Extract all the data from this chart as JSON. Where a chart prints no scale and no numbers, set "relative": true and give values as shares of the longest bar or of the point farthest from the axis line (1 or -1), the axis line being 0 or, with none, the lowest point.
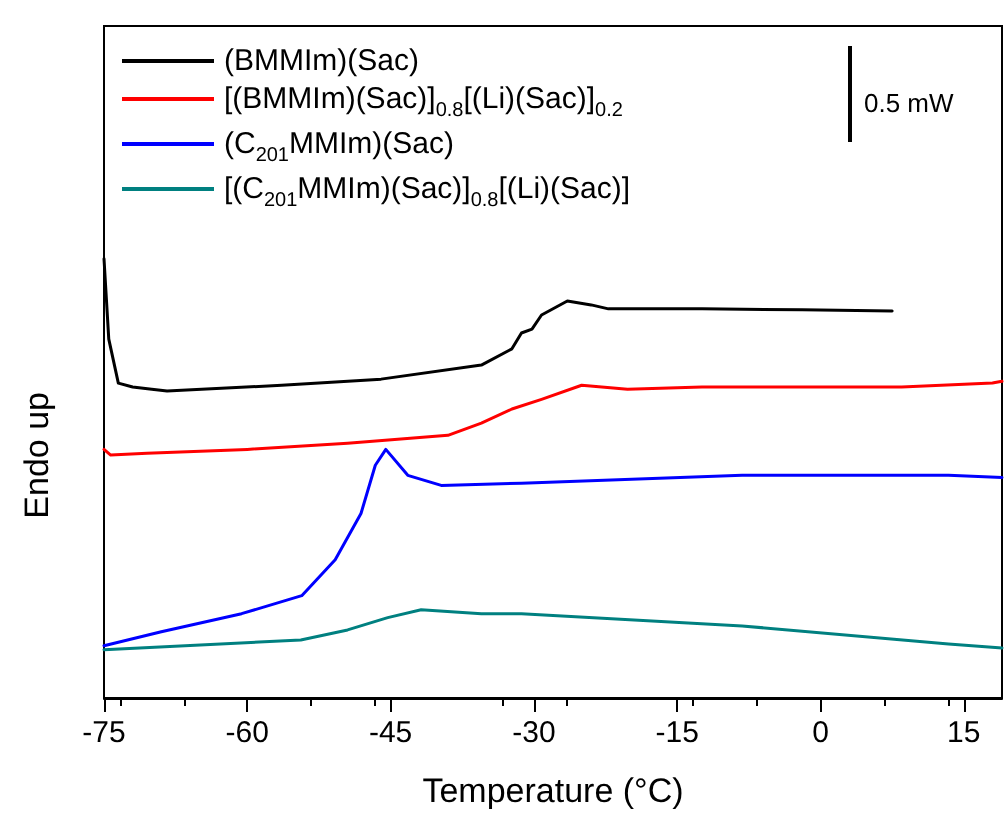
{
  "chart_data": {
    "type": "line",
    "relative": true,
    "xlabel": "Temperature (°C)",
    "ylabel": "Endo up",
    "xlim": [
      -75,
      19
    ],
    "xticks": [
      -75,
      -60,
      -45,
      -30,
      -15,
      0,
      15
    ],
    "legend": "top left",
    "marker": "none",
    "line_style": "solid",
    "grid": false,
    "annotations": [
      "0.5 mW"
    ],
    "series": [
      {
        "name": "(BMMIm)(Sac)",
        "color": "#000000",
        "x": [
          -75,
          -74.5,
          -73.5,
          -72,
          -70,
          -68.4,
          -56.4,
          -46,
          -35.5,
          -32.3,
          -31.3,
          -30.2,
          -29.2,
          -26.5,
          -24,
          -22.2,
          -12.4,
          -1.9,
          7.5
        ],
        "values": [
          1.0,
          0.817,
          0.717,
          0.708,
          0.703,
          0.699,
          0.712,
          0.726,
          0.758,
          0.795,
          0.831,
          0.84,
          0.872,
          0.904,
          0.895,
          0.886,
          0.886,
          0.884,
          0.881
        ]
      },
      {
        "name": "[(BMMIm)(Sac)]$_{0.8}$[(Li)(Sac)]$_{0.2}$",
        "color": "#ff0000",
        "x": [
          -75,
          -74.3,
          -70.5,
          -60,
          -49.5,
          -39,
          -35.5,
          -32.3,
          -29.2,
          -25,
          -20.2,
          -12.4,
          8.5,
          18,
          19
        ],
        "values": [
          0.566,
          0.553,
          0.557,
          0.566,
          0.58,
          0.598,
          0.626,
          0.658,
          0.68,
          0.712,
          0.703,
          0.708,
          0.708,
          0.717,
          0.721
        ]
      },
      {
        "name": "(C$_{201}$MMIm)(Sac)",
        "color": "#0000ff",
        "x": [
          -75,
          -69,
          -60.6,
          -54.3,
          -50.8,
          -48.1,
          -46.6,
          -45.5,
          -43.2,
          -39.7,
          -31.3,
          -8.2,
          13.4,
          19
        ],
        "values": [
          0.119,
          0.151,
          0.192,
          0.233,
          0.315,
          0.42,
          0.53,
          0.566,
          0.507,
          0.484,
          0.489,
          0.507,
          0.507,
          0.502
        ]
      },
      {
        "name": "[(C$_{201}$MMIm)(Sac)]$_{0.8}$[(Li)(Sac)]",
        "color": "#008080",
        "x": [
          -75,
          -54.4,
          -49.5,
          -45.3,
          -41.8,
          -35.5,
          -31.3,
          -8.2,
          13.4,
          19
        ],
        "values": [
          0.11,
          0.132,
          0.155,
          0.183,
          0.201,
          0.192,
          0.192,
          0.164,
          0.123,
          0.114
        ]
      }
    ]
  }
}
